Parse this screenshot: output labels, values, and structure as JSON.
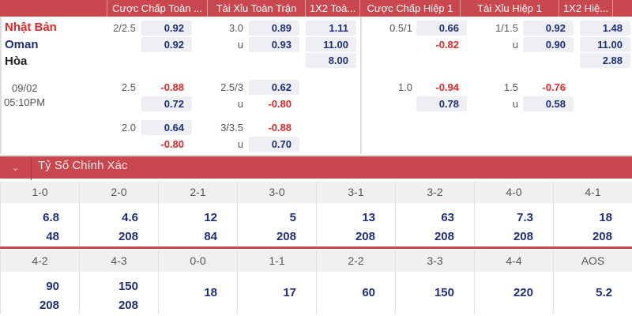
{
  "header": {
    "columns": [
      "Cược Chấp Toàn ...",
      "Tài Xỉu Toàn Trận",
      "1X2 Toà...",
      "Cược Chấp Hiệp 1",
      "Tài Xỉu Hiệp 1",
      "1X2 Hiệ..."
    ]
  },
  "match": {
    "home": "Nhật Bản",
    "away": "Oman",
    "draw": "Hòa",
    "date": "09/02",
    "time": "05:10PM"
  },
  "ft": {
    "hdp": [
      {
        "line": "2/2.5",
        "home": "0.92",
        "away": "0.92"
      },
      {
        "line": "2.5",
        "home": "-0.88",
        "away": "0.72"
      },
      {
        "line": "2.0",
        "home": "0.64",
        "away": "-0.80"
      }
    ],
    "ou": [
      {
        "line": "3.0",
        "over": "0.89",
        "u": "u",
        "under": "0.93"
      },
      {
        "line": "2.5/3",
        "over": "0.62",
        "u": "u",
        "under": "-0.80"
      },
      {
        "line": "3/3.5",
        "over": "-0.88",
        "u": "u",
        "under": "0.70"
      }
    ],
    "x12": [
      "1.11",
      "11.00",
      "8.00"
    ]
  },
  "h1": {
    "hdp": [
      {
        "line": "0.5/1",
        "home": "0.66",
        "away": "-0.82"
      },
      {
        "line": "1.0",
        "home": "-0.94",
        "away": "0.78"
      }
    ],
    "ou": [
      {
        "line": "1/1.5",
        "over": "0.92",
        "u": "u",
        "under": "0.90"
      },
      {
        "line": "1.5",
        "over": "-0.76",
        "u": "u",
        "under": "0.58"
      }
    ],
    "x12": [
      "1.48",
      "11.00",
      "2.88"
    ]
  },
  "correct_score": {
    "title": "Tỷ Số Chính Xác",
    "row1": [
      {
        "s": "1-0",
        "a": "6.8",
        "b": "48"
      },
      {
        "s": "2-0",
        "a": "4.6",
        "b": "208"
      },
      {
        "s": "2-1",
        "a": "12",
        "b": "84"
      },
      {
        "s": "3-0",
        "a": "5",
        "b": "208"
      },
      {
        "s": "3-1",
        "a": "13",
        "b": "208"
      },
      {
        "s": "3-2",
        "a": "63",
        "b": "208"
      },
      {
        "s": "4-0",
        "a": "7.3",
        "b": "208"
      },
      {
        "s": "4-1",
        "a": "18",
        "b": "208"
      }
    ],
    "row2": [
      {
        "s": "4-2",
        "a": "90",
        "b": "208"
      },
      {
        "s": "4-3",
        "a": "150",
        "b": "208"
      },
      {
        "s": "0-0",
        "a": "18"
      },
      {
        "s": "1-1",
        "a": "17"
      },
      {
        "s": "2-2",
        "a": "60"
      },
      {
        "s": "3-3",
        "a": "150"
      },
      {
        "s": "4-4",
        "a": "220"
      },
      {
        "s": "AOS",
        "a": "5.2"
      }
    ]
  },
  "colors": {
    "accent": "#c9474f",
    "odds_blue": "#1f2f7a",
    "odds_red": "#e52727"
  }
}
